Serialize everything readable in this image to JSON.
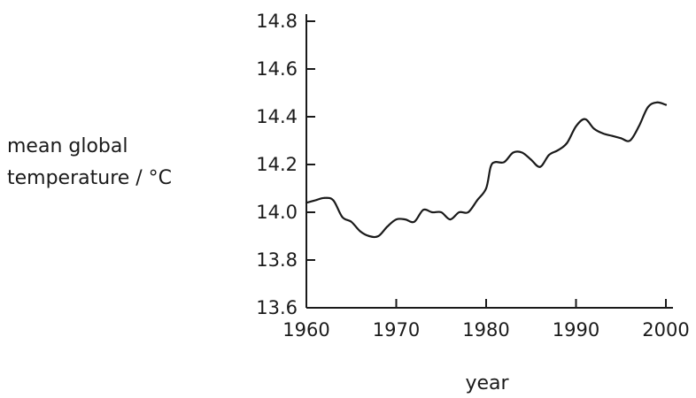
{
  "chart_data": {
    "type": "line",
    "title": "",
    "xlabel": "year",
    "ylabel_lines": [
      "mean global",
      "temperature / °C"
    ],
    "xlim": [
      1960,
      2000
    ],
    "ylim": [
      13.6,
      14.8
    ],
    "xticks": [
      1960,
      1970,
      1980,
      1990,
      2000
    ],
    "yticks": [
      "13.6",
      "13.8",
      "14.0",
      "14.2",
      "14.4",
      "14.6",
      "14.8"
    ],
    "grid": false,
    "line_color": "#1a1a1a",
    "series": [
      {
        "x": [
          1960,
          1961,
          1962,
          1963,
          1964,
          1965,
          1966,
          1967,
          1968,
          1969,
          1970,
          1971,
          1972,
          1973,
          1974,
          1975,
          1976,
          1977,
          1978,
          1979,
          1980,
          1980.5,
          1981,
          1982,
          1983,
          1984,
          1985,
          1986,
          1987,
          1988,
          1989,
          1990,
          1991,
          1992,
          1993,
          1994,
          1995,
          1996,
          1997,
          1998,
          1999,
          2000
        ],
        "y": [
          14.04,
          14.05,
          14.06,
          14.05,
          13.98,
          13.96,
          13.92,
          13.9,
          13.9,
          13.94,
          13.97,
          13.97,
          13.96,
          14.01,
          14.0,
          14.0,
          13.97,
          14.0,
          14.0,
          14.05,
          14.1,
          14.19,
          14.21,
          14.21,
          14.25,
          14.25,
          14.22,
          14.19,
          14.24,
          14.26,
          14.29,
          14.36,
          14.39,
          14.35,
          14.33,
          14.32,
          14.31,
          14.3,
          14.36,
          14.44,
          14.46,
          14.45
        ]
      }
    ]
  }
}
